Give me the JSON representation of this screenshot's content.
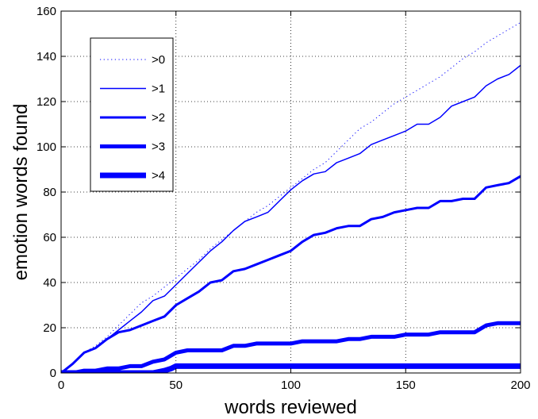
{
  "chart_data": {
    "type": "line",
    "title": "",
    "xlabel": "words reviewed",
    "ylabel": "emotion words found",
    "xlim": [
      0,
      200
    ],
    "ylim": [
      0,
      160
    ],
    "xticks": [
      0,
      50,
      100,
      150,
      200
    ],
    "yticks": [
      0,
      20,
      40,
      60,
      80,
      100,
      120,
      140,
      160
    ],
    "grid": true,
    "legend_position": "top-left",
    "line_color": "#0000ff",
    "series": [
      {
        "name": ">0",
        "style": "dotted",
        "x": [
          0,
          5,
          10,
          15,
          20,
          25,
          30,
          35,
          40,
          45,
          50,
          55,
          60,
          65,
          70,
          75,
          80,
          85,
          90,
          95,
          100,
          105,
          110,
          115,
          120,
          125,
          130,
          135,
          140,
          145,
          150,
          155,
          160,
          165,
          170,
          175,
          180,
          185,
          190,
          195,
          200
        ],
        "y": [
          0,
          4,
          9,
          12,
          16,
          21,
          26,
          31,
          34,
          38,
          42,
          46,
          50,
          55,
          59,
          63,
          67,
          71,
          74,
          78,
          82,
          86,
          90,
          93,
          98,
          103,
          108,
          111,
          115,
          119,
          122,
          125,
          128,
          131,
          135,
          139,
          142,
          146,
          149,
          152,
          155
        ]
      },
      {
        "name": ">1",
        "style": "solid",
        "x": [
          0,
          5,
          10,
          15,
          20,
          25,
          30,
          35,
          40,
          45,
          50,
          55,
          60,
          65,
          70,
          75,
          80,
          85,
          90,
          95,
          100,
          105,
          110,
          115,
          120,
          125,
          130,
          135,
          140,
          145,
          150,
          155,
          160,
          165,
          170,
          175,
          180,
          185,
          190,
          195,
          200
        ],
        "y": [
          0,
          4,
          9,
          11,
          15,
          19,
          23,
          27,
          32,
          34,
          39,
          44,
          49,
          54,
          58,
          63,
          67,
          69,
          71,
          76,
          81,
          85,
          88,
          89,
          93,
          95,
          97,
          101,
          103,
          105,
          107,
          110,
          110,
          113,
          118,
          120,
          122,
          127,
          130,
          132,
          136
        ]
      },
      {
        "name": ">2",
        "style": "solid",
        "x": [
          0,
          5,
          10,
          15,
          20,
          25,
          30,
          35,
          40,
          45,
          50,
          55,
          60,
          65,
          70,
          75,
          80,
          85,
          90,
          95,
          100,
          105,
          110,
          115,
          120,
          125,
          130,
          135,
          140,
          145,
          150,
          155,
          160,
          165,
          170,
          175,
          180,
          185,
          190,
          195,
          200
        ],
        "y": [
          0,
          4,
          9,
          11,
          15,
          18,
          19,
          21,
          23,
          25,
          30,
          33,
          36,
          40,
          41,
          45,
          46,
          48,
          50,
          52,
          54,
          58,
          61,
          62,
          64,
          65,
          65,
          68,
          69,
          71,
          72,
          73,
          73,
          76,
          76,
          77,
          77,
          82,
          83,
          84,
          87
        ]
      },
      {
        "name": ">3",
        "style": "solid",
        "x": [
          0,
          5,
          10,
          15,
          20,
          25,
          30,
          35,
          40,
          45,
          50,
          55,
          60,
          65,
          70,
          75,
          80,
          85,
          90,
          95,
          100,
          105,
          110,
          115,
          120,
          125,
          130,
          135,
          140,
          145,
          150,
          155,
          160,
          165,
          170,
          175,
          180,
          185,
          190,
          195,
          200
        ],
        "y": [
          0,
          0,
          1,
          1,
          2,
          2,
          3,
          3,
          5,
          6,
          9,
          10,
          10,
          10,
          10,
          12,
          12,
          13,
          13,
          13,
          13,
          14,
          14,
          14,
          14,
          15,
          15,
          16,
          16,
          16,
          17,
          17,
          17,
          18,
          18,
          18,
          18,
          21,
          22,
          22,
          22
        ]
      },
      {
        "name": ">4",
        "style": "solid",
        "x": [
          0,
          10,
          20,
          30,
          40,
          45,
          48,
          50,
          60,
          80,
          100,
          120,
          140,
          160,
          180,
          200
        ],
        "y": [
          0,
          0,
          0,
          0,
          0,
          1,
          2,
          3,
          3,
          3,
          3,
          3,
          3,
          3,
          3,
          3
        ]
      }
    ]
  }
}
